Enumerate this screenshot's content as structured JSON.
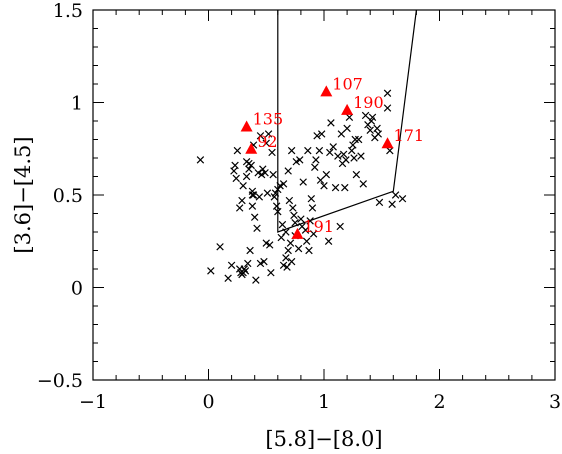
{
  "chart_data": {
    "type": "scatter",
    "title": "",
    "xlabel": "[5.8]−[8.0]",
    "ylabel": "[3.6]−[4.5]",
    "xlim": [
      -1,
      3
    ],
    "ylim": [
      -0.5,
      1.5
    ],
    "x_major_ticks": [
      -1,
      0,
      1,
      2,
      3
    ],
    "x_tick_labels": [
      "−1",
      "0",
      "1",
      "2",
      "3"
    ],
    "x_minor_step": 0.2,
    "y_major_ticks": [
      -0.5,
      0,
      0.5,
      1,
      1.5
    ],
    "y_tick_labels": [
      "−0.5",
      "0",
      "0.5",
      "1",
      "1.5"
    ],
    "y_minor_step": 0.1,
    "grid": false,
    "marker_color": "#000000",
    "highlight_color": "#ff0000",
    "series": [
      {
        "marker": "x",
        "points": [
          [
            -0.07,
            0.69
          ],
          [
            0.02,
            0.09
          ],
          [
            0.1,
            0.22
          ],
          [
            0.17,
            0.05
          ],
          [
            0.2,
            0.12
          ],
          [
            0.22,
            0.63
          ],
          [
            0.23,
            0.66
          ],
          [
            0.24,
            0.59
          ],
          [
            0.25,
            0.74
          ],
          [
            0.27,
            0.1
          ],
          [
            0.27,
            0.43
          ],
          [
            0.28,
            0.08
          ],
          [
            0.29,
            0.07
          ],
          [
            0.29,
            0.47
          ],
          [
            0.3,
            0.08
          ],
          [
            0.3,
            0.55
          ],
          [
            0.31,
            0.1
          ],
          [
            0.32,
            0.09
          ],
          [
            0.33,
            0.68
          ],
          [
            0.33,
            0.6
          ],
          [
            0.34,
            0.13
          ],
          [
            0.35,
            0.67
          ],
          [
            0.35,
            0.64
          ],
          [
            0.36,
            0.2
          ],
          [
            0.37,
            0.66
          ],
          [
            0.38,
            0.52
          ],
          [
            0.38,
            0.5
          ],
          [
            0.38,
            0.44
          ],
          [
            0.39,
            0.77
          ],
          [
            0.39,
            0.5
          ],
          [
            0.4,
            0.38
          ],
          [
            0.41,
            0.04
          ],
          [
            0.42,
            0.32
          ],
          [
            0.43,
            0.62
          ],
          [
            0.44,
            0.49
          ],
          [
            0.45,
            0.13
          ],
          [
            0.45,
            0.82
          ],
          [
            0.46,
            0.61
          ],
          [
            0.47,
            0.64
          ],
          [
            0.48,
            0.14
          ],
          [
            0.49,
            0.62
          ],
          [
            0.5,
            0.24
          ],
          [
            0.5,
            0.78
          ],
          [
            0.51,
            0.51
          ],
          [
            0.52,
            0.83
          ],
          [
            0.53,
            0.23
          ],
          [
            0.54,
            0.08
          ],
          [
            0.55,
            0.73
          ],
          [
            0.56,
            0.61
          ],
          [
            0.57,
            0.49
          ],
          [
            0.58,
            0.51
          ],
          [
            0.59,
            0.44
          ],
          [
            0.6,
            0.41
          ],
          [
            0.6,
            0.53
          ],
          [
            0.62,
            0.55
          ],
          [
            0.63,
            0.27
          ],
          [
            0.64,
            0.34
          ],
          [
            0.65,
            0.12
          ],
          [
            0.65,
            0.56
          ],
          [
            0.67,
            0.3
          ],
          [
            0.67,
            0.16
          ],
          [
            0.68,
            0.11
          ],
          [
            0.69,
            0.2
          ],
          [
            0.69,
            0.63
          ],
          [
            0.7,
            0.47
          ],
          [
            0.71,
            0.24
          ],
          [
            0.72,
            0.14
          ],
          [
            0.72,
            0.74
          ],
          [
            0.73,
            0.43
          ],
          [
            0.74,
            0.39
          ],
          [
            0.75,
            0.35
          ],
          [
            0.75,
            0.28
          ],
          [
            0.76,
            0.68
          ],
          [
            0.78,
            0.21
          ],
          [
            0.79,
            0.69
          ],
          [
            0.8,
            0.37
          ],
          [
            0.81,
            0.33
          ],
          [
            0.82,
            0.57
          ],
          [
            0.84,
            0.31
          ],
          [
            0.85,
            0.25
          ],
          [
            0.86,
            0.74
          ],
          [
            0.87,
            0.2
          ],
          [
            0.88,
            0.36
          ],
          [
            0.89,
            0.48
          ],
          [
            0.9,
            0.43
          ],
          [
            0.91,
            0.29
          ],
          [
            0.92,
            0.65
          ],
          [
            0.93,
            0.69
          ],
          [
            0.94,
            0.82
          ],
          [
            0.96,
            0.74
          ],
          [
            0.97,
            0.58
          ],
          [
            0.98,
            0.83
          ],
          [
            1.0,
            0.55
          ],
          [
            1.02,
            0.61
          ],
          [
            1.04,
            0.25
          ],
          [
            1.05,
            0.73
          ],
          [
            1.06,
            0.89
          ],
          [
            1.08,
            0.76
          ],
          [
            1.1,
            0.54
          ],
          [
            1.12,
            0.71
          ],
          [
            1.14,
            0.33
          ],
          [
            1.15,
            0.83
          ],
          [
            1.16,
            0.67
          ],
          [
            1.17,
            0.72
          ],
          [
            1.18,
            0.54
          ],
          [
            1.19,
            0.69
          ],
          [
            1.2,
            0.86
          ],
          [
            1.22,
            0.92
          ],
          [
            1.24,
            0.74
          ],
          [
            1.25,
            0.77
          ],
          [
            1.26,
            0.7
          ],
          [
            1.27,
            0.8
          ],
          [
            1.28,
            0.61
          ],
          [
            1.3,
            0.8
          ],
          [
            1.32,
            0.71
          ],
          [
            1.34,
            0.56
          ],
          [
            1.36,
            0.93
          ],
          [
            1.38,
            0.88
          ],
          [
            1.4,
            0.85
          ],
          [
            1.41,
            0.9
          ],
          [
            1.42,
            0.92
          ],
          [
            1.44,
            0.81
          ],
          [
            1.46,
            0.86
          ],
          [
            1.47,
            0.83
          ],
          [
            1.48,
            0.46
          ],
          [
            1.55,
            0.97
          ],
          [
            1.57,
            0.74
          ],
          [
            1.59,
            0.45
          ],
          [
            1.62,
            0.5
          ],
          [
            1.68,
            0.48
          ],
          [
            1.55,
            1.05
          ]
        ]
      },
      {
        "marker": "triangle",
        "points": [
          [
            0.33,
            0.87,
            "135"
          ],
          [
            0.37,
            0.75,
            "92"
          ],
          [
            1.02,
            1.06,
            "107"
          ],
          [
            1.2,
            0.96,
            "190"
          ],
          [
            1.55,
            0.78,
            "171"
          ],
          [
            0.77,
            0.29,
            "191"
          ]
        ]
      }
    ],
    "annotations": {
      "boundary_lines": [
        [
          [
            0.6,
            1.5
          ],
          [
            0.6,
            0.3
          ],
          [
            1.6,
            0.52
          ],
          [
            1.8,
            1.5
          ]
        ]
      ]
    }
  }
}
